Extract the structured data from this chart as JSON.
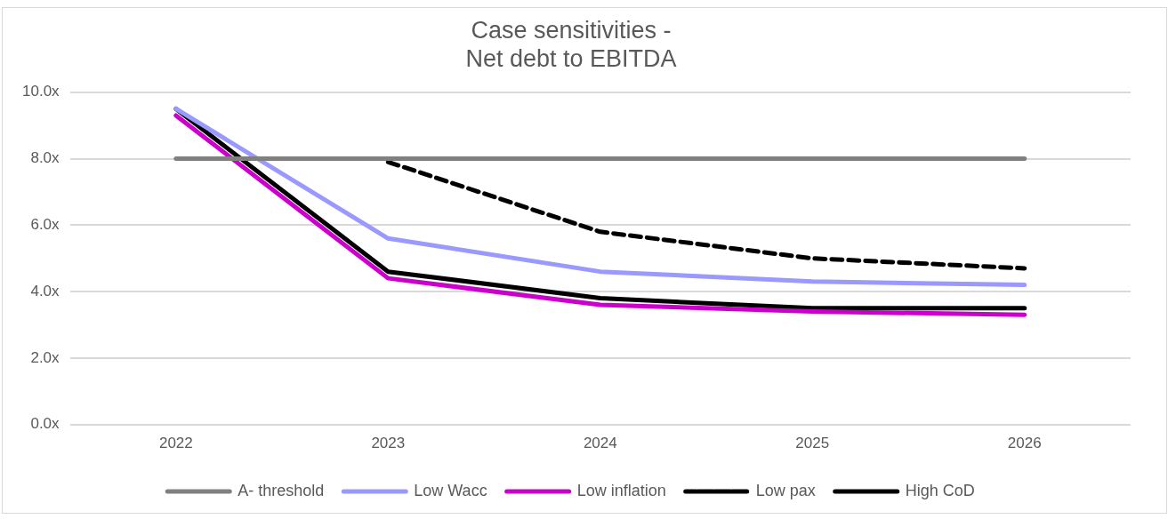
{
  "chart_data": {
    "type": "line",
    "title": "Case sensitivities -\nNet debt to EBITDA",
    "categories": [
      "2022",
      "2023",
      "2024",
      "2025",
      "2026"
    ],
    "series": [
      {
        "name": "A- threshold",
        "color": "#808080",
        "values": [
          8.0,
          8.0,
          8.0,
          8.0,
          8.0
        ]
      },
      {
        "name": "Low Wacc",
        "color": "#9999ff",
        "values": [
          9.5,
          5.6,
          4.6,
          4.3,
          4.2
        ]
      },
      {
        "name": "Low inflation",
        "color": "#cc00cc",
        "values": [
          9.3,
          4.4,
          3.6,
          3.4,
          3.3
        ]
      },
      {
        "name": "Low pax",
        "color": "#000000",
        "line_style": "dashed",
        "values": [
          null,
          7.9,
          5.8,
          5.0,
          4.7
        ]
      },
      {
        "name": "High CoD",
        "color": "#000000",
        "values": [
          9.5,
          4.6,
          3.8,
          3.5,
          3.5
        ]
      }
    ],
    "ylim": [
      0,
      10
    ],
    "yticks": [
      {
        "value": 0,
        "label": "0.0x"
      },
      {
        "value": 2,
        "label": "2.0x"
      },
      {
        "value": 4,
        "label": "4.0x"
      },
      {
        "value": 6,
        "label": "6.0x"
      },
      {
        "value": 8,
        "label": "8.0x"
      },
      {
        "value": 10,
        "label": "10.0x"
      }
    ],
    "grid": "y",
    "legend": "bottom",
    "marker": "none",
    "line_style": "solid"
  }
}
